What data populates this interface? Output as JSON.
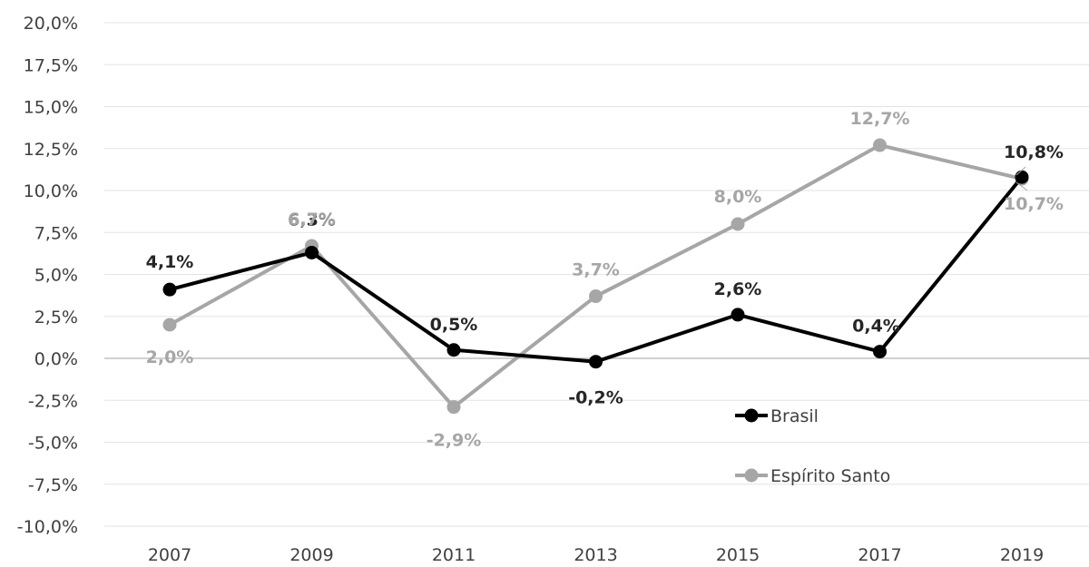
{
  "chart_data": {
    "type": "line",
    "categories": [
      "2007",
      "2009",
      "2011",
      "2013",
      "2015",
      "2017",
      "2019"
    ],
    "y_ticks": [
      "20,0%",
      "17,5%",
      "15,0%",
      "12,5%",
      "10,0%",
      "7,5%",
      "5,0%",
      "2,5%",
      "0,0%",
      "-2,5%",
      "-5,0%",
      "-7,5%",
      "-10,0%"
    ],
    "ylim": [
      -10,
      20
    ],
    "grid": true,
    "legend_position": "bottom-right inside plot",
    "series": [
      {
        "name": "Brasil",
        "color": "#000000",
        "values": [
          4.1,
          6.3,
          0.5,
          -0.2,
          2.6,
          0.4,
          10.8
        ],
        "labels": [
          "4,1%",
          "6,3%",
          "0,5%",
          "-0,2%",
          "2,6%",
          "0,4%",
          "10,8%"
        ],
        "label_color": "#262626"
      },
      {
        "name": "Espírito Santo",
        "color": "#a6a6a6",
        "values": [
          2.0,
          6.7,
          -2.9,
          3.7,
          8.0,
          12.7,
          10.7
        ],
        "labels": [
          "2,0%",
          "6,7%",
          "-2,9%",
          "3,7%",
          "8,0%",
          "12,7%",
          "10,7%"
        ],
        "label_color": "#a6a6a6"
      }
    ]
  }
}
